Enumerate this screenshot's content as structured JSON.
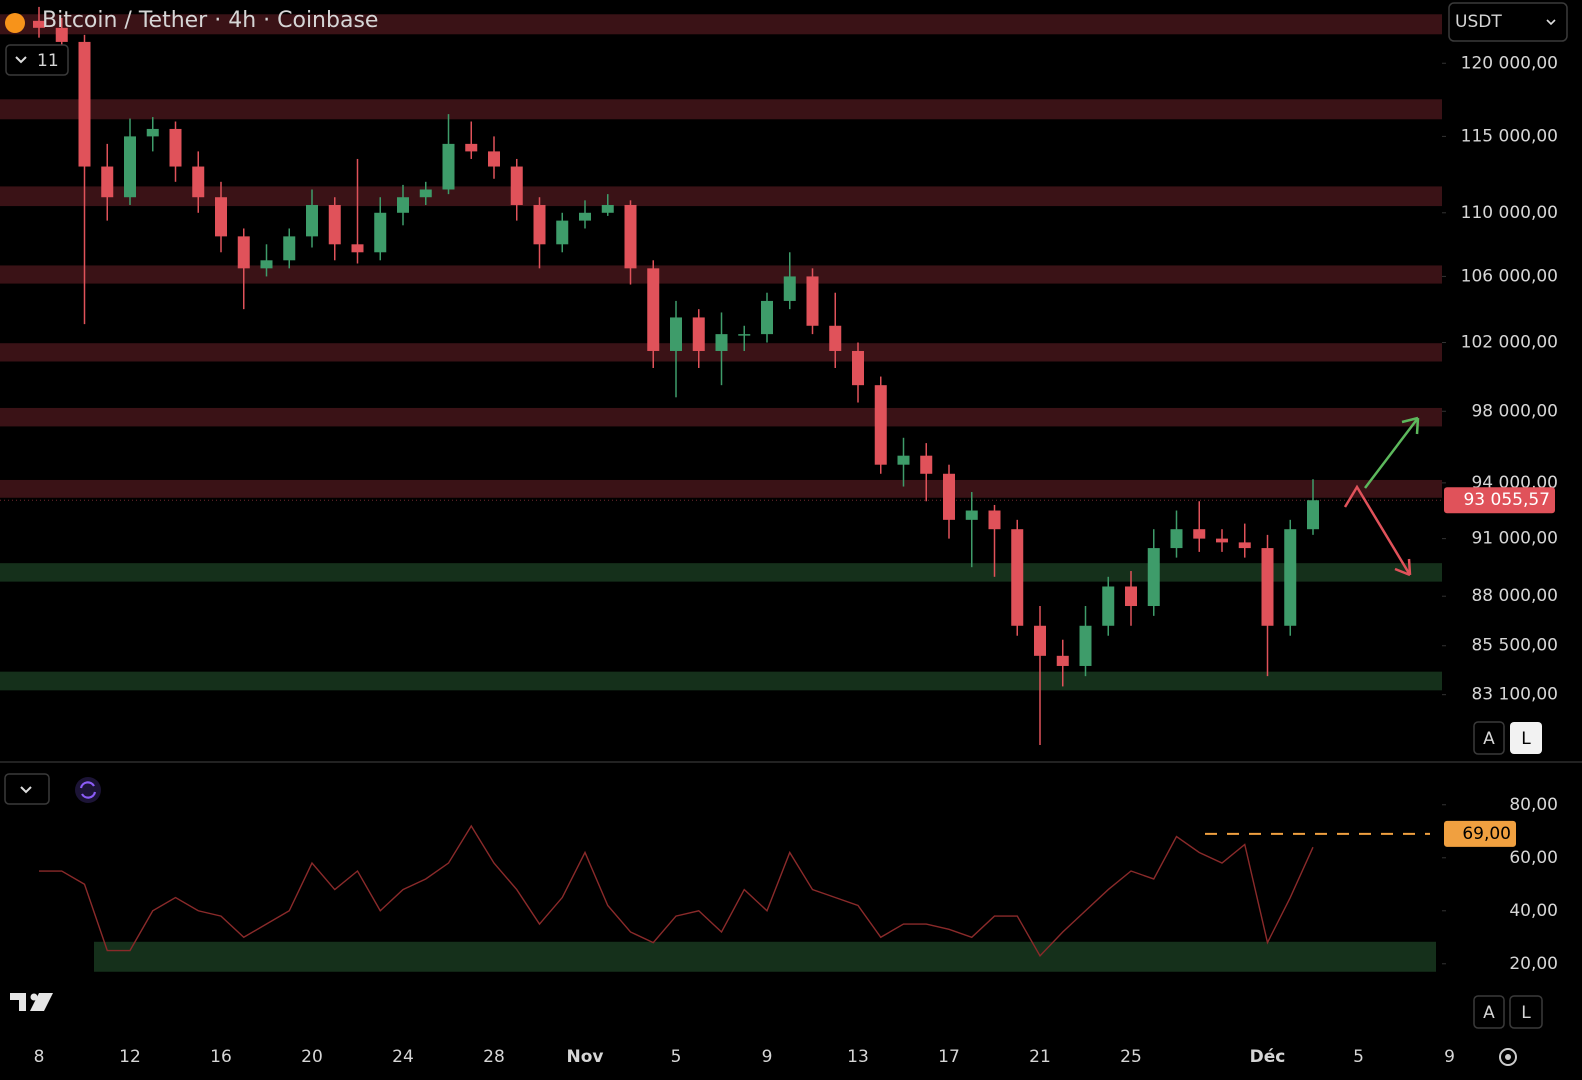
{
  "header": {
    "title": "Bitcoin / Tether · 4h · Coinbase",
    "indicator_count": "11",
    "currency": "USDT",
    "scale_buttons": [
      "A",
      "L"
    ]
  },
  "chart_data": [
    {
      "type": "candlestick",
      "categories": [
        "8",
        null,
        null,
        null,
        "12",
        null,
        null,
        null,
        "16",
        null,
        null,
        null,
        "20",
        null,
        null,
        null,
        "24",
        null,
        null,
        null,
        "28",
        null,
        null,
        null,
        "Nov",
        null,
        null,
        null,
        "5",
        null,
        null,
        null,
        "9",
        null,
        null,
        null,
        "13",
        null,
        null,
        null,
        "17",
        null,
        null,
        null,
        "21",
        null,
        null,
        null,
        "25",
        null,
        null,
        null,
        null,
        null,
        "Déc",
        null,
        null,
        null,
        "5",
        null,
        null,
        null,
        "9"
      ],
      "open": [
        123000,
        122500,
        121500,
        113000,
        111000,
        115000,
        115500,
        113000,
        111000,
        108500,
        106500,
        107000,
        108500,
        110500,
        108000,
        107500,
        110000,
        111000,
        111500,
        114500,
        114000,
        113000,
        110500,
        108000,
        109500,
        110000,
        110500,
        106500,
        101500,
        103500,
        101500,
        102500,
        102500,
        104500,
        106000,
        103000,
        101500,
        99500,
        95000,
        95500,
        94500,
        92000,
        92500,
        91500,
        86500,
        85000,
        84500,
        86500,
        88500,
        87500,
        90500,
        91500,
        91000,
        90800,
        90500,
        86500,
        91500,
        null,
        null,
        null,
        null,
        null,
        null
      ],
      "high": [
        124000,
        123200,
        122000,
        114500,
        116200,
        116300,
        116000,
        114000,
        112000,
        109000,
        108000,
        109000,
        111500,
        111000,
        113500,
        111000,
        111800,
        112000,
        116500,
        116000,
        115000,
        113500,
        111000,
        110000,
        110800,
        111200,
        110800,
        107000,
        104500,
        104000,
        103800,
        103000,
        105000,
        107500,
        106500,
        105000,
        102000,
        100000,
        96500,
        96200,
        95000,
        93500,
        92800,
        92000,
        87500,
        85800,
        87500,
        89000,
        89300,
        91500,
        92500,
        93000,
        91500,
        91800,
        91200,
        92000,
        94200,
        null,
        null,
        null,
        null,
        null,
        null
      ],
      "low": [
        121800,
        120800,
        103100,
        109500,
        110500,
        114000,
        112000,
        110000,
        107500,
        104000,
        106000,
        106500,
        107800,
        107000,
        106800,
        107000,
        109200,
        110500,
        111200,
        113500,
        112200,
        109500,
        106500,
        107500,
        109000,
        109800,
        105500,
        100500,
        98800,
        100500,
        99500,
        101500,
        102000,
        104000,
        102500,
        100500,
        98500,
        94500,
        93800,
        93000,
        91000,
        89500,
        89000,
        86000,
        80700,
        83500,
        84000,
        86000,
        86500,
        87000,
        90000,
        90300,
        90300,
        90000,
        84000,
        86000,
        91200,
        null,
        null,
        null,
        null,
        null,
        null
      ],
      "close": [
        122500,
        121500,
        113000,
        111000,
        115000,
        115500,
        113000,
        111000,
        108500,
        106500,
        107000,
        108500,
        110500,
        108000,
        107500,
        110000,
        111000,
        111500,
        114500,
        114000,
        113000,
        110500,
        108000,
        109500,
        110000,
        110500,
        106500,
        101500,
        103500,
        101500,
        102500,
        102500,
        104500,
        106000,
        103000,
        101500,
        99500,
        95000,
        95500,
        94500,
        92000,
        92500,
        91500,
        86500,
        85000,
        84500,
        86500,
        88500,
        87500,
        90500,
        91500,
        91000,
        90800,
        90500,
        86500,
        91500,
        93055.57,
        null,
        null,
        null,
        null,
        null,
        null
      ],
      "up_color": "#3e9c6a",
      "down_color": "#e0525a",
      "last_price_label": "93 055,57",
      "log_scale": true,
      "grid": false,
      "ylim": [
        80000,
        124500
      ],
      "yticks": [
        {
          "value": 120000,
          "label": "120 000,00"
        },
        {
          "value": 115000,
          "label": "115 000,00"
        },
        {
          "value": 110000,
          "label": "110 000,00"
        },
        {
          "value": 106000,
          "label": "106 000,00"
        },
        {
          "value": 102000,
          "label": "102 000,00"
        },
        {
          "value": 98000,
          "label": "98 000,00"
        },
        {
          "value": 94000,
          "label": "94 000,00"
        },
        {
          "value": 91000,
          "label": "91 000,00"
        },
        {
          "value": 88000,
          "label": "88 000,00"
        },
        {
          "value": 85500,
          "label": "85 500,00"
        },
        {
          "value": 83100,
          "label": "83 100,00"
        }
      ],
      "zones": [
        {
          "from": 122040,
          "to": 123470,
          "color": "#3a1216"
        },
        {
          "from": 116150,
          "to": 117510,
          "color": "#3a1216"
        },
        {
          "from": 110430,
          "to": 111700,
          "color": "#3a1216"
        },
        {
          "from": 105560,
          "to": 106680,
          "color": "#3a1216"
        },
        {
          "from": 100880,
          "to": 101960,
          "color": "#3a1216"
        },
        {
          "from": 97140,
          "to": 98190,
          "color": "#3a1216"
        },
        {
          "from": 93190,
          "to": 94160,
          "color": "#3a1216"
        },
        {
          "from": 88750,
          "to": 89710,
          "color": "#15301b"
        },
        {
          "from": 83310,
          "to": 84220,
          "color": "#15301b"
        }
      ]
    },
    {
      "type": "line",
      "color": "#8a2a2a",
      "values": [
        55,
        55,
        50,
        25,
        25,
        40,
        45,
        40,
        38,
        30,
        35,
        40,
        58,
        48,
        55,
        40,
        48,
        52,
        58,
        72,
        58,
        48,
        35,
        45,
        62,
        42,
        32,
        28,
        38,
        40,
        32,
        48,
        40,
        62,
        48,
        45,
        42,
        30,
        35,
        35,
        33,
        30,
        38,
        38,
        23,
        32,
        40,
        48,
        55,
        52,
        68,
        62,
        58,
        65,
        28,
        45,
        64,
        null,
        null,
        null,
        null,
        null,
        null
      ],
      "ylim": [
        -8,
        95
      ],
      "yticks": [
        {
          "value": 80,
          "label": "80,00"
        },
        {
          "value": 60,
          "label": "60,00"
        },
        {
          "value": 40,
          "label": "40,00"
        },
        {
          "value": 20,
          "label": "20,00"
        }
      ],
      "zones": [
        {
          "from": 17,
          "to": 28.3,
          "color": "#15301b"
        }
      ],
      "reference_line": {
        "value": 69,
        "label": "69,00",
        "color": "#f0a040"
      }
    }
  ]
}
